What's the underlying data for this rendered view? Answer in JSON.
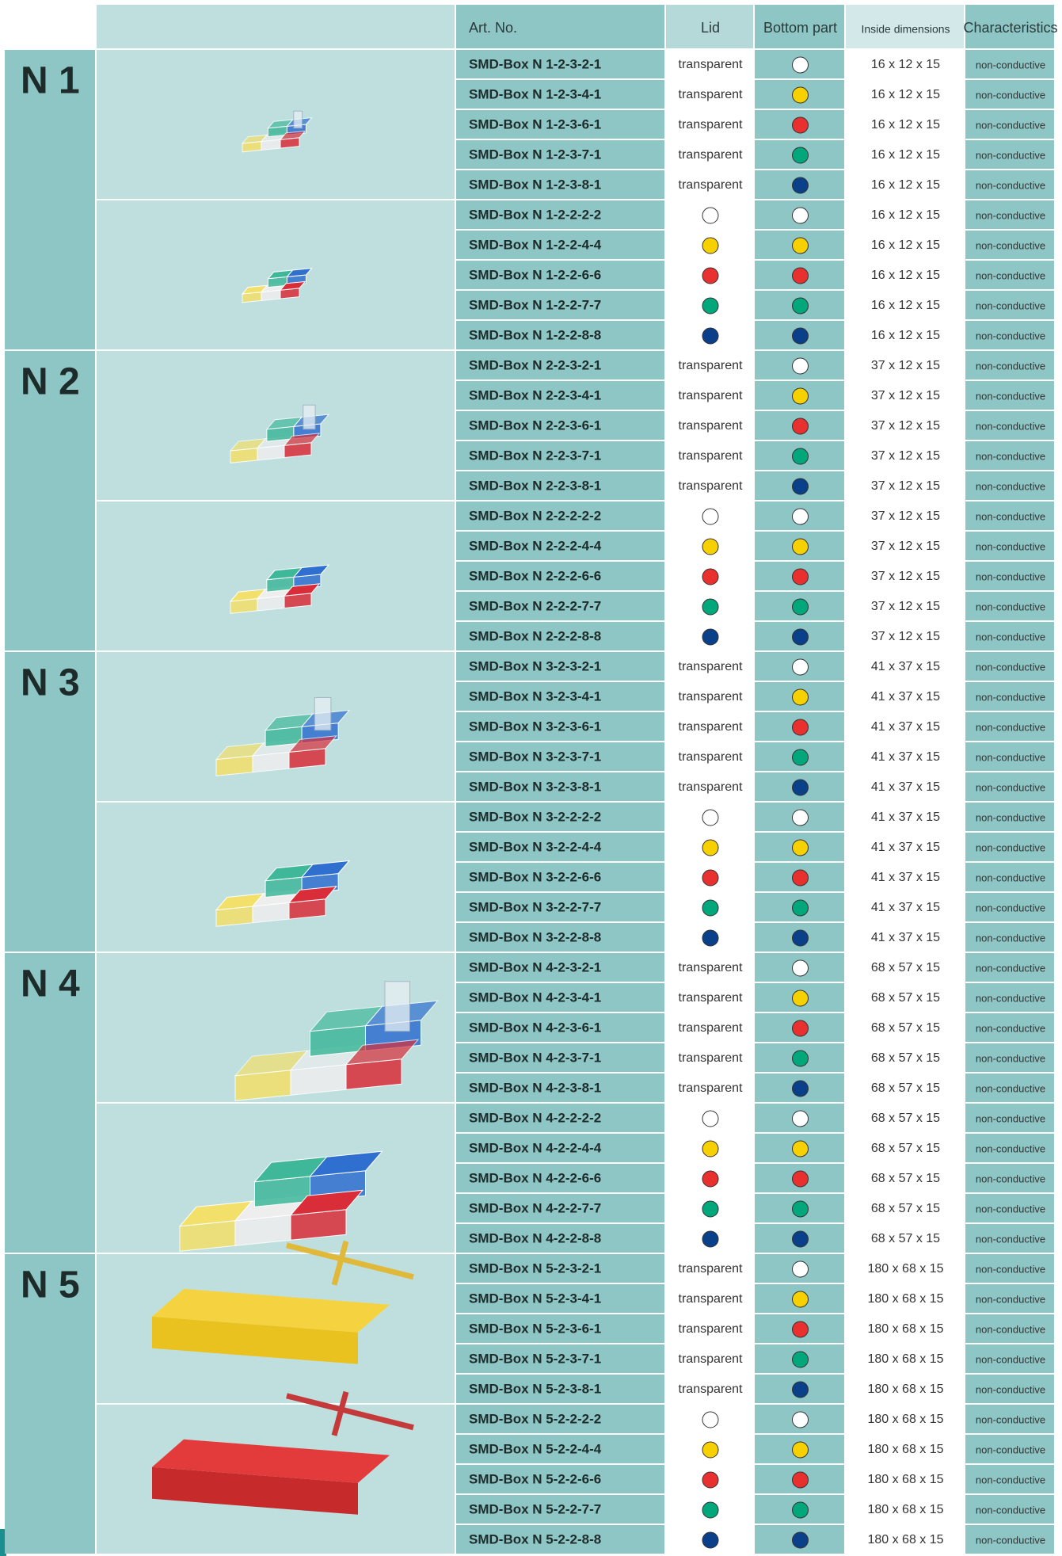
{
  "header": {
    "art_no": "Art. No.",
    "lid": "Lid",
    "bottom": "Bottom part",
    "dims": "Inside dimensions",
    "characteristics": "Characteristics"
  },
  "groups": [
    {
      "label": "N 1",
      "rows": [
        {
          "art_no": "SMD-Box N 1-2-3-2-1",
          "lid": "transparent",
          "bottom": "#ffffff",
          "dims": "16 x 12 x 15",
          "characteristics": "non-conductive"
        },
        {
          "art_no": "SMD-Box N 1-2-3-4-1",
          "lid": "transparent",
          "bottom": "#f7d000",
          "dims": "16 x 12 x 15",
          "characteristics": "non-conductive"
        },
        {
          "art_no": "SMD-Box N 1-2-3-6-1",
          "lid": "transparent",
          "bottom": "#e8312f",
          "dims": "16 x 12 x 15",
          "characteristics": "non-conductive"
        },
        {
          "art_no": "SMD-Box N 1-2-3-7-1",
          "lid": "transparent",
          "bottom": "#00a77a",
          "dims": "16 x 12 x 15",
          "characteristics": "non-conductive"
        },
        {
          "art_no": "SMD-Box N 1-2-3-8-1",
          "lid": "transparent",
          "bottom": "#0a3f8a",
          "dims": "16 x 12 x 15",
          "characteristics": "non-conductive"
        },
        {
          "art_no": "SMD-Box N 1-2-2-2-2",
          "lid_color": "#ffffff",
          "bottom": "#ffffff",
          "dims": "16 x 12 x 15",
          "characteristics": "non-conductive"
        },
        {
          "art_no": "SMD-Box N 1-2-2-4-4",
          "lid_color": "#f7d000",
          "bottom": "#f7d000",
          "dims": "16 x 12 x 15",
          "characteristics": "non-conductive"
        },
        {
          "art_no": "SMD-Box N 1-2-2-6-6",
          "lid_color": "#e8312f",
          "bottom": "#e8312f",
          "dims": "16 x 12 x 15",
          "characteristics": "non-conductive"
        },
        {
          "art_no": "SMD-Box N 1-2-2-7-7",
          "lid_color": "#00a77a",
          "bottom": "#00a77a",
          "dims": "16 x 12 x 15",
          "characteristics": "non-conductive"
        },
        {
          "art_no": "SMD-Box N 1-2-2-8-8",
          "lid_color": "#0a3f8a",
          "bottom": "#0a3f8a",
          "dims": "16 x 12 x 15",
          "characteristics": "non-conductive"
        }
      ]
    },
    {
      "label": "N 2",
      "rows": [
        {
          "art_no": "SMD-Box N 2-2-3-2-1",
          "lid": "transparent",
          "bottom": "#ffffff",
          "dims": "37 x 12 x 15",
          "characteristics": "non-conductive"
        },
        {
          "art_no": "SMD-Box N 2-2-3-4-1",
          "lid": "transparent",
          "bottom": "#f7d000",
          "dims": "37 x 12 x 15",
          "characteristics": "non-conductive"
        },
        {
          "art_no": "SMD-Box N 2-2-3-6-1",
          "lid": "transparent",
          "bottom": "#e8312f",
          "dims": "37 x 12 x 15",
          "characteristics": "non-conductive"
        },
        {
          "art_no": "SMD-Box N 2-2-3-7-1",
          "lid": "transparent",
          "bottom": "#00a77a",
          "dims": "37 x 12 x 15",
          "characteristics": "non-conductive"
        },
        {
          "art_no": "SMD-Box N 2-2-3-8-1",
          "lid": "transparent",
          "bottom": "#0a3f8a",
          "dims": "37 x 12 x 15",
          "characteristics": "non-conductive"
        },
        {
          "art_no": "SMD-Box N 2-2-2-2-2",
          "lid_color": "#ffffff",
          "bottom": "#ffffff",
          "dims": "37 x 12 x 15",
          "characteristics": "non-conductive"
        },
        {
          "art_no": "SMD-Box N 2-2-2-4-4",
          "lid_color": "#f7d000",
          "bottom": "#f7d000",
          "dims": "37 x 12 x 15",
          "characteristics": "non-conductive"
        },
        {
          "art_no": "SMD-Box N 2-2-2-6-6",
          "lid_color": "#e8312f",
          "bottom": "#e8312f",
          "dims": "37 x 12 x 15",
          "characteristics": "non-conductive"
        },
        {
          "art_no": "SMD-Box N 2-2-2-7-7",
          "lid_color": "#00a77a",
          "bottom": "#00a77a",
          "dims": "37 x 12 x 15",
          "characteristics": "non-conductive"
        },
        {
          "art_no": "SMD-Box N 2-2-2-8-8",
          "lid_color": "#0a3f8a",
          "bottom": "#0a3f8a",
          "dims": "37 x 12 x 15",
          "characteristics": "non-conductive"
        }
      ]
    },
    {
      "label": "N 3",
      "rows": [
        {
          "art_no": "SMD-Box N 3-2-3-2-1",
          "lid": "transparent",
          "bottom": "#ffffff",
          "dims": "41 x 37 x 15",
          "characteristics": "non-conductive"
        },
        {
          "art_no": "SMD-Box N 3-2-3-4-1",
          "lid": "transparent",
          "bottom": "#f7d000",
          "dims": "41 x 37 x 15",
          "characteristics": "non-conductive"
        },
        {
          "art_no": "SMD-Box N 3-2-3-6-1",
          "lid": "transparent",
          "bottom": "#e8312f",
          "dims": "41 x 37 x 15",
          "characteristics": "non-conductive"
        },
        {
          "art_no": "SMD-Box N 3-2-3-7-1",
          "lid": "transparent",
          "bottom": "#00a77a",
          "dims": "41 x 37 x 15",
          "characteristics": "non-conductive"
        },
        {
          "art_no": "SMD-Box N 3-2-3-8-1",
          "lid": "transparent",
          "bottom": "#0a3f8a",
          "dims": "41 x 37 x 15",
          "characteristics": "non-conductive"
        },
        {
          "art_no": "SMD-Box N 3-2-2-2-2",
          "lid_color": "#ffffff",
          "bottom": "#ffffff",
          "dims": "41 x 37 x 15",
          "characteristics": "non-conductive"
        },
        {
          "art_no": "SMD-Box N 3-2-2-4-4",
          "lid_color": "#f7d000",
          "bottom": "#f7d000",
          "dims": "41 x 37 x 15",
          "characteristics": "non-conductive"
        },
        {
          "art_no": "SMD-Box N 3-2-2-6-6",
          "lid_color": "#e8312f",
          "bottom": "#e8312f",
          "dims": "41 x 37 x 15",
          "characteristics": "non-conductive"
        },
        {
          "art_no": "SMD-Box N 3-2-2-7-7",
          "lid_color": "#00a77a",
          "bottom": "#00a77a",
          "dims": "41 x 37 x 15",
          "characteristics": "non-conductive"
        },
        {
          "art_no": "SMD-Box N 3-2-2-8-8",
          "lid_color": "#0a3f8a",
          "bottom": "#0a3f8a",
          "dims": "41 x 37 x 15",
          "characteristics": "non-conductive"
        }
      ]
    },
    {
      "label": "N 4",
      "rows": [
        {
          "art_no": "SMD-Box N 4-2-3-2-1",
          "lid": "transparent",
          "bottom": "#ffffff",
          "dims": "68 x 57 x 15",
          "characteristics": "non-conductive"
        },
        {
          "art_no": "SMD-Box N 4-2-3-4-1",
          "lid": "transparent",
          "bottom": "#f7d000",
          "dims": "68 x 57 x 15",
          "characteristics": "non-conductive"
        },
        {
          "art_no": "SMD-Box N 4-2-3-6-1",
          "lid": "transparent",
          "bottom": "#e8312f",
          "dims": "68 x 57 x 15",
          "characteristics": "non-conductive"
        },
        {
          "art_no": "SMD-Box N 4-2-3-7-1",
          "lid": "transparent",
          "bottom": "#00a77a",
          "dims": "68 x 57 x 15",
          "characteristics": "non-conductive"
        },
        {
          "art_no": "SMD-Box N 4-2-3-8-1",
          "lid": "transparent",
          "bottom": "#0a3f8a",
          "dims": "68 x 57 x 15",
          "characteristics": "non-conductive"
        },
        {
          "art_no": "SMD-Box N 4-2-2-2-2",
          "lid_color": "#ffffff",
          "bottom": "#ffffff",
          "dims": "68 x 57 x 15",
          "characteristics": "non-conductive"
        },
        {
          "art_no": "SMD-Box N 4-2-2-4-4",
          "lid_color": "#f7d000",
          "bottom": "#f7d000",
          "dims": "68 x 57 x 15",
          "characteristics": "non-conductive"
        },
        {
          "art_no": "SMD-Box N 4-2-2-6-6",
          "lid_color": "#e8312f",
          "bottom": "#e8312f",
          "dims": "68 x 57 x 15",
          "characteristics": "non-conductive"
        },
        {
          "art_no": "SMD-Box N 4-2-2-7-7",
          "lid_color": "#00a77a",
          "bottom": "#00a77a",
          "dims": "68 x 57 x 15",
          "characteristics": "non-conductive"
        },
        {
          "art_no": "SMD-Box N 4-2-2-8-8",
          "lid_color": "#0a3f8a",
          "bottom": "#0a3f8a",
          "dims": "68 x 57 x 15",
          "characteristics": "non-conductive"
        }
      ]
    },
    {
      "label": "N 5",
      "rows": [
        {
          "art_no": "SMD-Box N 5-2-3-2-1",
          "lid": "transparent",
          "bottom": "#ffffff",
          "dims": "180 x 68 x 15",
          "characteristics": "non-conductive"
        },
        {
          "art_no": "SMD-Box N 5-2-3-4-1",
          "lid": "transparent",
          "bottom": "#f7d000",
          "dims": "180 x 68 x 15",
          "characteristics": "non-conductive"
        },
        {
          "art_no": "SMD-Box N 5-2-3-6-1",
          "lid": "transparent",
          "bottom": "#e8312f",
          "dims": "180 x 68 x 15",
          "characteristics": "non-conductive"
        },
        {
          "art_no": "SMD-Box N 5-2-3-7-1",
          "lid": "transparent",
          "bottom": "#00a77a",
          "dims": "180 x 68 x 15",
          "characteristics": "non-conductive"
        },
        {
          "art_no": "SMD-Box N 5-2-3-8-1",
          "lid": "transparent",
          "bottom": "#0a3f8a",
          "dims": "180 x 68 x 15",
          "characteristics": "non-conductive"
        },
        {
          "art_no": "SMD-Box N 5-2-2-2-2",
          "lid_color": "#ffffff",
          "bottom": "#ffffff",
          "dims": "180 x 68 x 15",
          "characteristics": "non-conductive"
        },
        {
          "art_no": "SMD-Box N 5-2-2-4-4",
          "lid_color": "#f7d000",
          "bottom": "#f7d000",
          "dims": "180 x 68 x 15",
          "characteristics": "non-conductive"
        },
        {
          "art_no": "SMD-Box N 5-2-2-6-6",
          "lid_color": "#e8312f",
          "bottom": "#e8312f",
          "dims": "180 x 68 x 15",
          "characteristics": "non-conductive"
        },
        {
          "art_no": "SMD-Box N 5-2-2-7-7",
          "lid_color": "#00a77a",
          "bottom": "#00a77a",
          "dims": "180 x 68 x 15",
          "characteristics": "non-conductive"
        },
        {
          "art_no": "SMD-Box N 5-2-2-8-8",
          "lid_color": "#0a3f8a",
          "bottom": "#0a3f8a",
          "dims": "180 x 68 x 15",
          "characteristics": "non-conductive"
        }
      ]
    }
  ]
}
